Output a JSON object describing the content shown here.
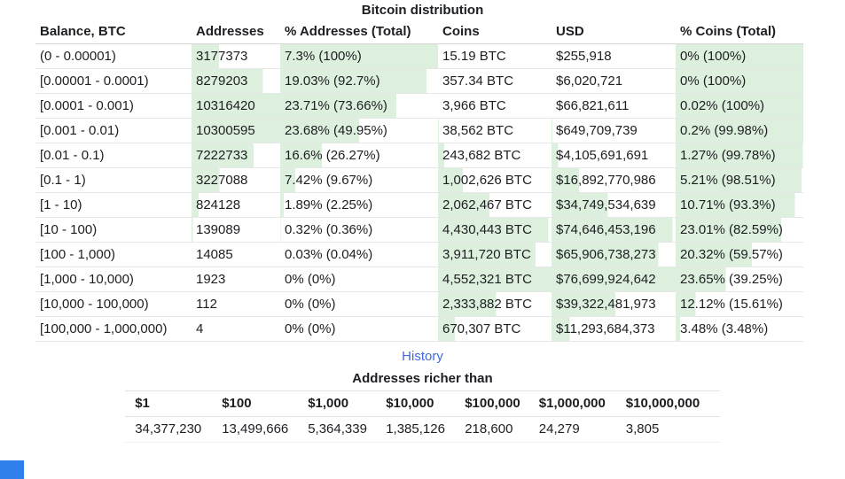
{
  "title": "Bitcoin distribution",
  "history_label": "History",
  "colors": {
    "highlight": "#ddf0dd",
    "link": "#4169e1",
    "widget_blue": "#2f80ed",
    "text": "#1c1e21"
  },
  "distribution": {
    "columns": [
      "Balance, BTC",
      "Addresses",
      "% Addresses (Total)",
      "Coins",
      "USD",
      "% Coins (Total)"
    ],
    "rows": [
      {
        "balance": "(0 - 0.00001)",
        "addresses": "3177373",
        "pct_addresses": "7.3% (100%)",
        "coins": "15.19 BTC",
        "usd": "$255,918",
        "pct_coins": "0% (100%)"
      },
      {
        "balance": "[0.00001 - 0.0001)",
        "addresses": "8279203",
        "pct_addresses": "19.03% (92.7%)",
        "coins": "357.34 BTC",
        "usd": "$6,020,721",
        "pct_coins": "0% (100%)"
      },
      {
        "balance": "[0.0001 - 0.001)",
        "addresses": "10316420",
        "pct_addresses": "23.71% (73.66%)",
        "coins": "3,966 BTC",
        "usd": "$66,821,611",
        "pct_coins": "0.02% (100%)"
      },
      {
        "balance": "[0.001 - 0.01)",
        "addresses": "10300595",
        "pct_addresses": "23.68% (49.95%)",
        "coins": "38,562 BTC",
        "usd": "$649,709,739",
        "pct_coins": "0.2% (99.98%)"
      },
      {
        "balance": "[0.01 - 0.1)",
        "addresses": "7222733",
        "pct_addresses": "16.6% (26.27%)",
        "coins": "243,682 BTC",
        "usd": "$4,105,691,691",
        "pct_coins": "1.27% (99.78%)"
      },
      {
        "balance": "[0.1 - 1)",
        "addresses": "3227088",
        "pct_addresses": "7.42% (9.67%)",
        "coins": "1,002,626 BTC",
        "usd": "$16,892,770,986",
        "pct_coins": "5.21% (98.51%)"
      },
      {
        "balance": "[1 - 10)",
        "addresses": "824128",
        "pct_addresses": "1.89% (2.25%)",
        "coins": "2,062,467 BTC",
        "usd": "$34,749,534,639",
        "pct_coins": "10.71% (93.3%)"
      },
      {
        "balance": "[10 - 100)",
        "addresses": "139089",
        "pct_addresses": "0.32% (0.36%)",
        "coins": "4,430,443 BTC",
        "usd": "$74,646,453,196",
        "pct_coins": "23.01% (82.59%)"
      },
      {
        "balance": "[100 - 1,000)",
        "addresses": "14085",
        "pct_addresses": "0.03% (0.04%)",
        "coins": "3,911,720 BTC",
        "usd": "$65,906,738,273",
        "pct_coins": "20.32% (59.57%)"
      },
      {
        "balance": "[1,000 - 10,000)",
        "addresses": "1923",
        "pct_addresses": "0% (0%)",
        "coins": "4,552,321 BTC",
        "usd": "$76,699,924,642",
        "pct_coins": "23.65% (39.25%)"
      },
      {
        "balance": "[10,000 - 100,000)",
        "addresses": "112",
        "pct_addresses": "0% (0%)",
        "coins": "2,333,882 BTC",
        "usd": "$39,322,481,973",
        "pct_coins": "12.12% (15.61%)"
      },
      {
        "balance": "[100,000 - 1,000,000)",
        "addresses": "4",
        "pct_addresses": "0% (0%)",
        "coins": "670,307 BTC",
        "usd": "$11,293,684,373",
        "pct_coins": "3.48% (3.48%)"
      }
    ]
  },
  "richer": {
    "title": "Addresses richer than",
    "columns": [
      "$1",
      "$100",
      "$1,000",
      "$10,000",
      "$100,000",
      "$1,000,000",
      "$10,000,000"
    ],
    "values": [
      "34,377,230",
      "13,499,666",
      "5,364,339",
      "1,385,126",
      "218,600",
      "24,279",
      "3,805"
    ]
  }
}
